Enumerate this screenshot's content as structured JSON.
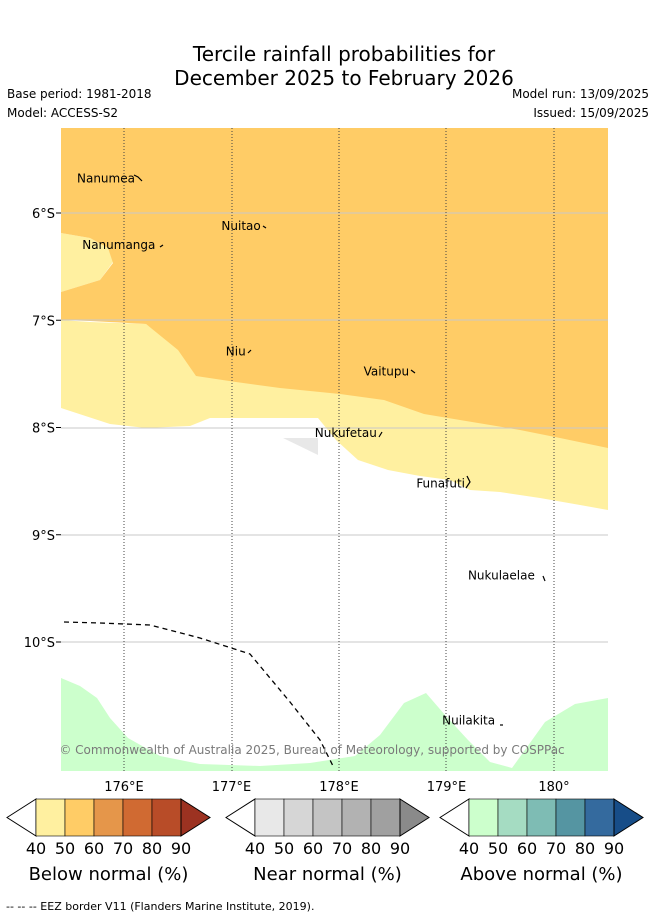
{
  "title_line1": "Tercile rainfall probabilities for",
  "title_line2": "December 2025 to February 2026",
  "base_period": "Base period: 1981-2018",
  "model": "Model: ACCESS-S2",
  "model_run": "Model run: 13/09/2025",
  "issued": "Issued: 15/09/2025",
  "copyright": "© Commonwealth of Australia 2025, Bureau of Meteorology, supported by COSPPac",
  "axes": {
    "lat_ticks": [
      "6°S",
      "7°S",
      "8°S",
      "9°S",
      "10°S"
    ],
    "lon_ticks": [
      "176°E",
      "177°E",
      "178°E",
      "179°E",
      "180°"
    ],
    "lon_range": [
      175.4,
      180.5
    ],
    "lat_range": [
      -5.2,
      -11.2
    ]
  },
  "places": [
    {
      "name": "Nanumea",
      "lon": 176.13,
      "lat": -5.68
    },
    {
      "name": "Nuitao",
      "lon": 177.3,
      "lat": -6.12
    },
    {
      "name": "Nanumanga",
      "lon": 176.32,
      "lat": -6.3
    },
    {
      "name": "Niu",
      "lon": 177.16,
      "lat": -7.29
    },
    {
      "name": "Vaitupu",
      "lon": 178.68,
      "lat": -7.48
    },
    {
      "name": "Nukufetau",
      "lon": 178.38,
      "lat": -8.05
    },
    {
      "name": "Funafuti",
      "lon": 179.2,
      "lat": -8.52
    },
    {
      "name": "Nukulaelae",
      "lon": 179.85,
      "lat": -9.38
    },
    {
      "name": "Nuilakita",
      "lon": 179.48,
      "lat": -10.73
    }
  ],
  "legends": [
    {
      "label": "Below normal (%)",
      "colors": [
        "#ffffff",
        "#fff0a0",
        "#ffcc66",
        "#e5964a",
        "#d06a32",
        "#b84c28",
        "#9c3221"
      ],
      "ticks": [
        "40",
        "50",
        "60",
        "70",
        "80",
        "90"
      ]
    },
    {
      "label": "Near normal (%)",
      "colors": [
        "#ffffff",
        "#e8e8e8",
        "#d6d6d6",
        "#c4c4c4",
        "#b2b2b2",
        "#a0a0a0",
        "#8a8a8a"
      ],
      "ticks": [
        "40",
        "50",
        "60",
        "70",
        "80",
        "90"
      ]
    },
    {
      "label": "Above normal (%)",
      "colors": [
        "#ffffff",
        "#ccffcc",
        "#a5dcc2",
        "#7ebcb4",
        "#5595a2",
        "#346a9e",
        "#174d88"
      ],
      "ticks": [
        "40",
        "50",
        "60",
        "70",
        "80",
        "90"
      ]
    }
  ],
  "footer": "--  --  -- EEZ border V11 (Flanders Marine Institute, 2019)."
}
